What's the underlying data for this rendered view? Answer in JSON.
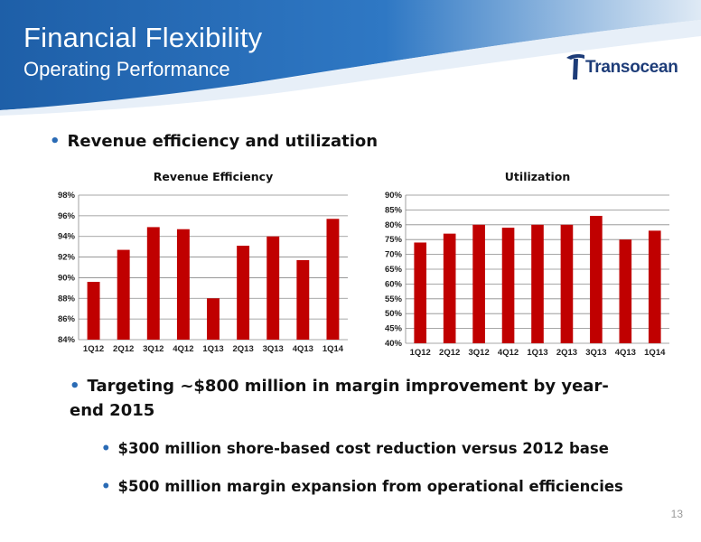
{
  "header": {
    "title": "Financial Flexibility",
    "subtitle": "Operating Performance"
  },
  "logo": {
    "text": "Transocean"
  },
  "bullets": {
    "b1": "Revenue efficiency and utilization",
    "b2": "Targeting ~$800 million in margin improvement by year-end 2015",
    "b3": "$300 million shore-based cost reduction versus 2012 base",
    "b4": "$500 million margin expansion from operational efficiencies"
  },
  "bullet_glyph": "•",
  "page_number": "13",
  "colors": {
    "header_blue": "#1e5fa8",
    "bar_red": "#c00000",
    "bullet_blue": "#2a6bb5"
  },
  "chart_data": [
    {
      "type": "bar",
      "title": "Revenue Efficiency",
      "categories": [
        "1Q12",
        "2Q12",
        "3Q12",
        "4Q12",
        "1Q13",
        "2Q13",
        "3Q13",
        "4Q13",
        "1Q14"
      ],
      "values": [
        89.6,
        92.7,
        94.9,
        94.7,
        88.0,
        93.1,
        94.0,
        91.7,
        95.7
      ],
      "ylim": [
        84,
        98
      ],
      "yticks": [
        "84%",
        "86%",
        "88%",
        "90%",
        "92%",
        "94%",
        "96%",
        "98%"
      ],
      "grid": true
    },
    {
      "type": "bar",
      "title": "Utilization",
      "categories": [
        "1Q12",
        "2Q12",
        "3Q12",
        "4Q12",
        "1Q13",
        "2Q13",
        "3Q13",
        "4Q13",
        "1Q14"
      ],
      "values": [
        74,
        77,
        80,
        79,
        80,
        80,
        83,
        75,
        78
      ],
      "ylim": [
        40,
        90
      ],
      "yticks": [
        "40%",
        "45%",
        "50%",
        "55%",
        "60%",
        "65%",
        "70%",
        "75%",
        "80%",
        "85%",
        "90%"
      ],
      "grid": true
    }
  ]
}
